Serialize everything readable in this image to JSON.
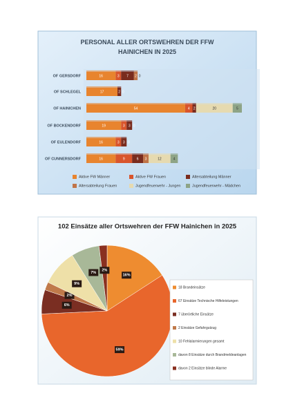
{
  "chart_data": [
    {
      "type": "stacked-barh",
      "title": "PERSONAL ALLER ORTSWEHREN DER FFW HAINICHEN IN 2025",
      "categories": [
        "OF GERSDORF",
        "OF SCHLEGEL",
        "OF HAINICHEN",
        "OF BOCKENDORF",
        "OF EULENDORF",
        "OF CUNNERSDORF"
      ],
      "xlim": [
        0,
        85
      ],
      "legend": "bottom",
      "series": [
        {
          "name": "Aktive FW Männer",
          "color": "#e8842e",
          "values": [
            16,
            17,
            54,
            19,
            16,
            16
          ]
        },
        {
          "name": "Aktive FW Frauen",
          "color": "#d9552c",
          "values": [
            3,
            0,
            4,
            3,
            3,
            9
          ]
        },
        {
          "name": "Altersabteilung Männer",
          "color": "#7a2c1e",
          "values": [
            7,
            2,
            2,
            3,
            3,
            6
          ]
        },
        {
          "name": "Altersabteilung Frauen",
          "color": "#c07448",
          "values": [
            2,
            0,
            0,
            0,
            0,
            3
          ]
        },
        {
          "name": "Jugendfeuerwehr - Jungen",
          "color": "#e6dab0",
          "values": [
            0,
            null,
            20,
            null,
            null,
            12
          ]
        },
        {
          "name": "Jugendfeuerwehr - Mädchen",
          "color": "#8ea486",
          "values": [
            null,
            null,
            5,
            null,
            null,
            4
          ]
        }
      ]
    },
    {
      "type": "pie",
      "title": "102 Einsätze aller Ortswehren der FFW Hainichen in 2025",
      "labels": [
        "18 Brandeinsätze",
        "67 Einsätze Technische Hilfeleistungen",
        "7 überörtliche Einsätze",
        "2 Einsätze Gefahrgutzug",
        "10 Fehlalarmierungen gesamt",
        "davon 8 Einsätze durch Brandmeldeanlagen",
        "davon 2 Einsätze blinde Alarme"
      ],
      "values": [
        16,
        59,
        6,
        2,
        9,
        7,
        2
      ],
      "value_labels": [
        "16%",
        "59%",
        "6%",
        "2%",
        "9%",
        "7%",
        "2%"
      ],
      "colors": [
        "#ee8c30",
        "#e8662c",
        "#7a2e22",
        "#c07a4a",
        "#eee0a8",
        "#a8b898",
        "#8a3020"
      ],
      "legend": "right"
    }
  ]
}
